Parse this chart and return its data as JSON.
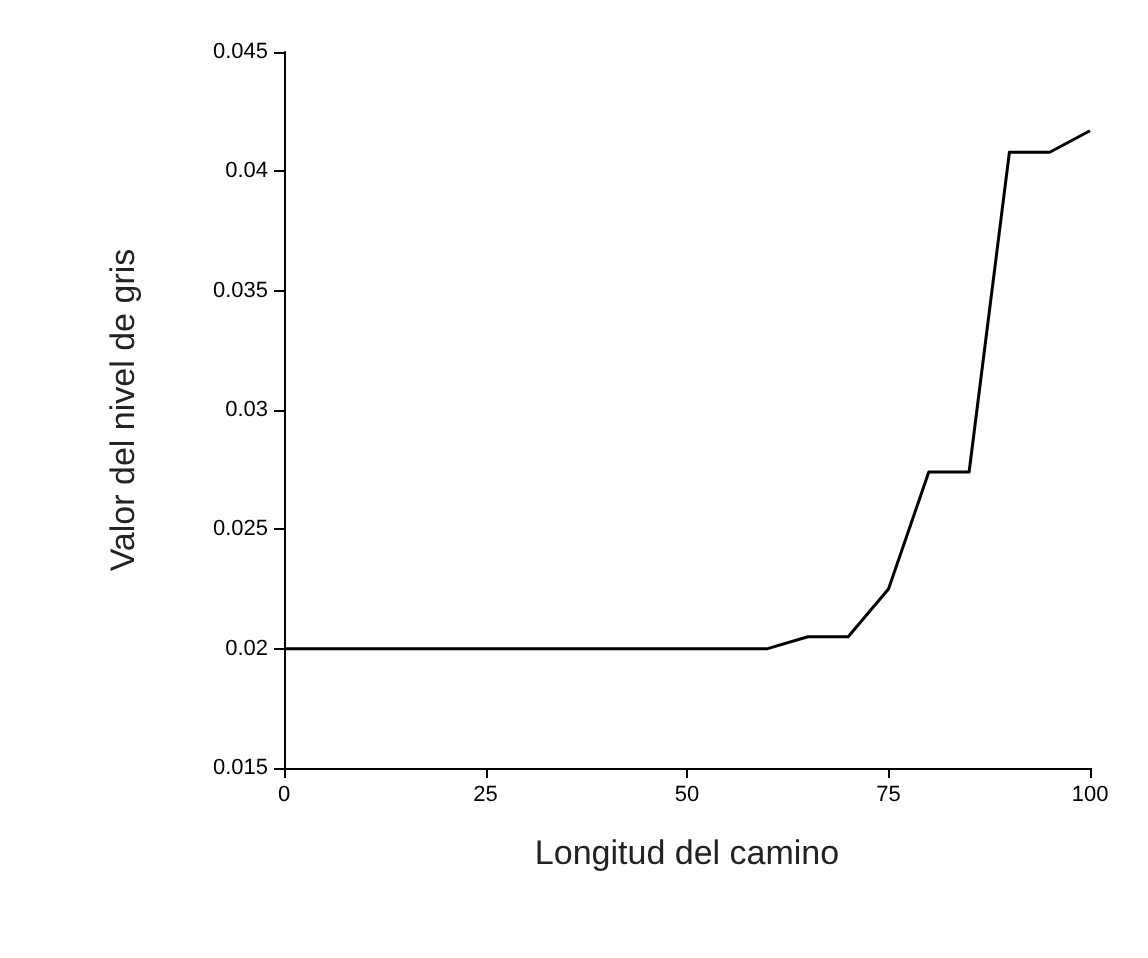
{
  "chart_data": {
    "type": "line",
    "xlabel": "Longitud del camino",
    "ylabel": "Valor del nivel de gris",
    "x": [
      0,
      60,
      65,
      70,
      75,
      80,
      85,
      90,
      95,
      100
    ],
    "series": [
      {
        "color": "#000000",
        "values": [
          0.02,
          0.02,
          0.0205,
          0.0205,
          0.0225,
          0.0274,
          0.0274,
          0.0408,
          0.0408,
          0.0417
        ]
      }
    ],
    "xlim": [
      0,
      100
    ],
    "xticks": [
      0,
      25,
      50,
      75,
      100
    ],
    "ylim": [
      0.015,
      0.045
    ],
    "yticks": [
      0.015,
      0.02,
      0.025,
      0.03,
      0.035,
      0.04,
      0.045
    ],
    "grid": false,
    "marker": "none",
    "line_style": "solid"
  }
}
